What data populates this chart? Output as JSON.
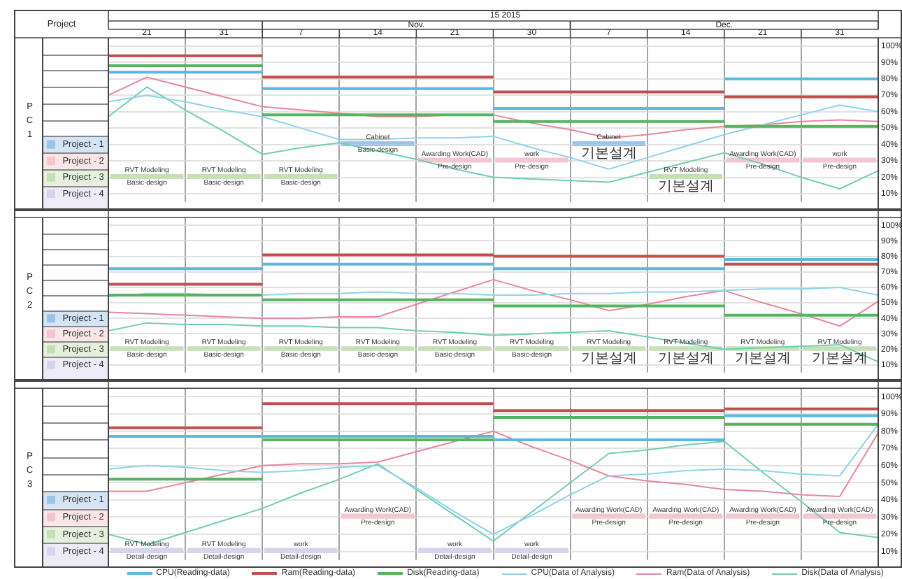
{
  "chart_data": [
    {
      "type": "line",
      "title": "15 2015",
      "legend_title": "Project",
      "ylabel": "PC1",
      "annotations": [
        "Nov.",
        "Dec."
      ],
      "categories": [
        null,
        "21",
        null,
        "31",
        null,
        "7",
        null,
        "14",
        null,
        "21",
        null,
        "30",
        null,
        "7",
        null,
        "14",
        null,
        "21",
        null,
        "31",
        null
      ],
      "series": [
        {
          "type": "step",
          "color": "#5bb8de",
          "values": [
            84,
            84,
            84,
            84,
            74,
            74,
            74,
            74,
            74,
            74,
            62,
            62,
            62,
            62,
            62,
            62,
            80,
            80,
            80,
            80,
            80
          ]
        },
        {
          "type": "step",
          "color": "#c0504d",
          "values": [
            94,
            94,
            94,
            94,
            81,
            81,
            81,
            81,
            81,
            81,
            72,
            72,
            72,
            72,
            72,
            72,
            69,
            69,
            69,
            69,
            69
          ]
        },
        {
          "type": "step",
          "color": "#55b45e",
          "values": [
            88,
            88,
            88,
            88,
            58,
            58,
            58,
            58,
            58,
            58,
            54,
            54,
            54,
            54,
            54,
            54,
            51,
            51,
            51,
            51,
            51
          ]
        },
        {
          "color": "#8fd3ea",
          "values": [
            66,
            70,
            66,
            61,
            57,
            50,
            43,
            43,
            44,
            44,
            45,
            38,
            32,
            25,
            32,
            39,
            46,
            52,
            58,
            64,
            60
          ]
        },
        {
          "color": "#e8879a",
          "values": [
            70,
            81,
            75,
            69,
            63,
            61,
            59,
            57,
            57,
            58,
            58,
            53,
            49,
            44,
            46,
            49,
            51,
            52,
            54,
            55,
            54
          ]
        },
        {
          "color": "#73cdb5",
          "values": [
            57,
            75,
            61,
            48,
            34,
            38,
            41,
            36,
            31,
            25,
            20,
            19,
            18,
            17,
            23,
            29,
            35,
            28,
            20,
            13,
            24
          ]
        },
        {
          "name": "Project - 1",
          "type": "bar",
          "color": "#9dc3e6",
          "values": [
            null,
            null,
            null,
            null,
            null,
            null,
            null,
            2,
            null,
            null,
            null,
            null,
            null,
            2,
            null,
            null,
            null,
            null,
            null,
            null,
            null
          ],
          "base": [
            null,
            null,
            null,
            null,
            null,
            null,
            null,
            40,
            null,
            null,
            null,
            null,
            null,
            40,
            null,
            null,
            null,
            null,
            null,
            null,
            null
          ],
          "value_labels": [
            null,
            null,
            null,
            null,
            null,
            null,
            null,
            "Cabinet",
            null,
            null,
            null,
            null,
            null,
            "Cabinet",
            null,
            null,
            null,
            null,
            null,
            null,
            null
          ]
        },
        {
          "type": "bar",
          "color": "#9dc3e6",
          "values": [
            null,
            null,
            null,
            null,
            null,
            null,
            null,
            -1,
            null,
            null,
            null,
            null,
            null,
            -1,
            null,
            null,
            null,
            null,
            null,
            null,
            null
          ],
          "base": [
            null,
            null,
            null,
            null,
            null,
            null,
            null,
            40,
            null,
            null,
            null,
            null,
            null,
            40,
            null,
            null,
            null,
            null,
            null,
            null,
            null
          ],
          "value_labels": [
            null,
            null,
            null,
            null,
            null,
            null,
            null,
            "Basic-design",
            null,
            null,
            null,
            null,
            null,
            "기본설계",
            null,
            null,
            null,
            null,
            null,
            null,
            null
          ]
        },
        {
          "name": "Project - 2",
          "type": "bar",
          "color": "#f4c7cf",
          "values": [
            null,
            null,
            null,
            null,
            null,
            null,
            null,
            null,
            null,
            2,
            null,
            2,
            null,
            null,
            null,
            null,
            null,
            2,
            null,
            2,
            null
          ],
          "base": [
            null,
            null,
            null,
            null,
            null,
            null,
            null,
            null,
            null,
            30,
            null,
            30,
            null,
            null,
            null,
            null,
            null,
            30,
            null,
            30,
            null
          ],
          "value_labels": [
            null,
            null,
            null,
            null,
            null,
            null,
            null,
            null,
            null,
            "Awarding Work(CAD)",
            null,
            "work",
            null,
            null,
            null,
            null,
            null,
            "Awarding Work(CAD)",
            null,
            "work",
            null
          ]
        },
        {
          "type": "bar",
          "color": "#f4c7cf",
          "values": [
            null,
            null,
            null,
            null,
            null,
            null,
            null,
            null,
            null,
            -1,
            null,
            -1,
            null,
            null,
            null,
            null,
            null,
            -1,
            null,
            -1,
            null
          ],
          "base": [
            null,
            null,
            null,
            null,
            null,
            null,
            null,
            null,
            null,
            30,
            null,
            30,
            null,
            null,
            null,
            null,
            null,
            30,
            null,
            30,
            null
          ],
          "value_labels": [
            null,
            null,
            null,
            null,
            null,
            null,
            null,
            null,
            null,
            "Pre-design",
            null,
            "Pre-design",
            null,
            null,
            null,
            null,
            null,
            "Pre-design",
            null,
            "Pre-design",
            null
          ]
        },
        {
          "name": "Project - 3",
          "type": "bar",
          "color": "#c5e0b4",
          "values": [
            null,
            2,
            null,
            2,
            null,
            2,
            null,
            null,
            null,
            null,
            null,
            null,
            null,
            null,
            null,
            2,
            null,
            null,
            null,
            null,
            null
          ],
          "base": [
            null,
            20,
            null,
            20,
            null,
            20,
            null,
            null,
            null,
            null,
            null,
            null,
            null,
            null,
            null,
            20,
            null,
            null,
            null,
            null,
            null
          ],
          "value_labels": [
            null,
            "RVT Modeling",
            null,
            "RVT Modeling",
            null,
            "RVT Modeling",
            null,
            null,
            null,
            null,
            null,
            null,
            null,
            null,
            null,
            "RVT Modeling",
            null,
            null,
            null,
            null,
            null
          ]
        },
        {
          "type": "bar",
          "color": "#c5e0b4",
          "values": [
            null,
            -1,
            null,
            -1,
            null,
            -1,
            null,
            null,
            null,
            null,
            null,
            null,
            null,
            null,
            null,
            -1,
            null,
            null,
            null,
            null,
            null
          ],
          "base": [
            null,
            20,
            null,
            20,
            null,
            20,
            null,
            null,
            null,
            null,
            null,
            null,
            null,
            null,
            null,
            20,
            null,
            null,
            null,
            null,
            null
          ],
          "value_labels": [
            null,
            "Basic-design",
            null,
            "Basic-design",
            null,
            "Basic-design",
            null,
            null,
            null,
            null,
            null,
            null,
            null,
            null,
            null,
            "기본설계",
            null,
            null,
            null,
            null,
            null
          ]
        },
        {
          "name": "Project - 4",
          "type": "bar",
          "color": "#d6d4ec",
          "values": [
            null,
            null,
            null,
            null,
            null,
            null,
            null,
            null,
            null,
            null,
            null,
            null,
            null,
            null,
            null,
            null,
            null,
            null,
            null,
            null,
            null
          ]
        }
      ],
      "ylim": [
        5,
        105
      ],
      "yticks": [
        {
          "value": 10,
          "label": "10%"
        },
        {
          "value": 20,
          "label": "20%"
        },
        {
          "value": 30,
          "label": "30%"
        },
        {
          "value": 40,
          "label": "40%"
        },
        {
          "value": 50,
          "label": "50%"
        },
        {
          "value": 60,
          "label": "60%"
        },
        {
          "value": 70,
          "label": "70%"
        },
        {
          "value": 80,
          "label": "80%"
        },
        {
          "value": 90,
          "label": "90%"
        },
        {
          "value": 100,
          "label": "100%"
        }
      ],
      "grid": true,
      "legend": "left"
    },
    {
      "type": "line",
      "ylabel": "PC2",
      "categories": [
        null,
        "21",
        null,
        "31",
        null,
        "7",
        null,
        "14",
        null,
        "21",
        null,
        "30",
        null,
        "7",
        null,
        "14",
        null,
        "21",
        null,
        "31",
        null
      ],
      "series": [
        {
          "type": "step",
          "color": "#5bb8de",
          "values": [
            72,
            72,
            72,
            72,
            75,
            75,
            75,
            75,
            75,
            75,
            72,
            72,
            72,
            72,
            72,
            72,
            78,
            78,
            78,
            78,
            78
          ]
        },
        {
          "type": "step",
          "color": "#c0504d",
          "values": [
            62,
            62,
            62,
            62,
            81,
            81,
            81,
            81,
            81,
            81,
            80,
            80,
            80,
            80,
            80,
            80,
            75,
            75,
            75,
            75,
            75
          ]
        },
        {
          "type": "step",
          "color": "#55b45e",
          "values": [
            55,
            55,
            55,
            55,
            52,
            52,
            52,
            52,
            52,
            52,
            48,
            48,
            48,
            48,
            48,
            48,
            42,
            42,
            42,
            42,
            42
          ]
        },
        {
          "color": "#8fd3ea",
          "values": [
            54,
            56,
            56,
            55,
            55,
            56,
            56,
            57,
            56,
            56,
            55,
            55,
            56,
            56,
            57,
            57,
            58,
            59,
            59,
            60,
            55
          ]
        },
        {
          "color": "#e8879a",
          "values": [
            44,
            43,
            42,
            41,
            40,
            40,
            41,
            41,
            49,
            57,
            65,
            58,
            52,
            45,
            49,
            54,
            58,
            50,
            43,
            35,
            51
          ]
        },
        {
          "color": "#73cdb5",
          "values": [
            32,
            37,
            36,
            36,
            35,
            35,
            34,
            34,
            32,
            31,
            29,
            30,
            31,
            32,
            28,
            24,
            20,
            21,
            22,
            23,
            12
          ]
        },
        {
          "name": "Project - 1",
          "type": "bar",
          "color": "#9dc3e6",
          "values": [
            null,
            null,
            null,
            null,
            null,
            null,
            null,
            null,
            null,
            null,
            null,
            null,
            null,
            null,
            null,
            null,
            null,
            null,
            null,
            null,
            null
          ]
        },
        {
          "name": "Project - 2",
          "type": "bar",
          "color": "#f4c7cf",
          "values": [
            null,
            null,
            null,
            null,
            null,
            null,
            null,
            null,
            null,
            null,
            null,
            null,
            null,
            null,
            null,
            null,
            null,
            null,
            null,
            null,
            null
          ]
        },
        {
          "name": "Project - 3",
          "type": "bar",
          "color": "#c5e0b4",
          "values": [
            null,
            2,
            null,
            2,
            null,
            2,
            null,
            2,
            null,
            2,
            null,
            2,
            null,
            2,
            null,
            2,
            null,
            2,
            null,
            2,
            null
          ],
          "base": [
            null,
            20,
            null,
            20,
            null,
            20,
            null,
            20,
            null,
            20,
            null,
            20,
            null,
            20,
            null,
            20,
            null,
            20,
            null,
            20,
            null
          ],
          "value_labels": [
            null,
            "RVT Modeling",
            null,
            "RVT Modeling",
            null,
            "RVT Modeling",
            null,
            "RVT Modeling",
            null,
            "RVT Modeling",
            null,
            "RVT Modeling",
            null,
            "RVT Modeling",
            null,
            "RVT Modeling",
            null,
            "RVT Modeling",
            null,
            "RVT Modeling",
            null
          ]
        },
        {
          "type": "bar",
          "color": "#c5e0b4",
          "values": [
            null,
            -1,
            null,
            -1,
            null,
            -1,
            null,
            -1,
            null,
            -1,
            null,
            -1,
            null,
            -1,
            null,
            -1,
            null,
            -1,
            null,
            -1,
            null
          ],
          "base": [
            null,
            20,
            null,
            20,
            null,
            20,
            null,
            20,
            null,
            20,
            null,
            20,
            null,
            20,
            null,
            20,
            null,
            20,
            null,
            20,
            null
          ],
          "value_labels": [
            null,
            "Basic-design",
            null,
            "Basic-design",
            null,
            "Basic-design",
            null,
            "Basic-design",
            null,
            "Basic-design",
            null,
            "Basic-design",
            null,
            "기본설계",
            null,
            "기본설계",
            null,
            "기본설계",
            null,
            "기본설계",
            null
          ]
        },
        {
          "name": "Project - 4",
          "type": "bar",
          "color": "#d6d4ec",
          "values": [
            null,
            null,
            null,
            null,
            null,
            null,
            null,
            null,
            null,
            null,
            null,
            null,
            null,
            null,
            null,
            null,
            null,
            null,
            null,
            null,
            null
          ]
        }
      ],
      "ylim": [
        5,
        105
      ],
      "yticks": [
        {
          "value": 10,
          "label": "10%"
        },
        {
          "value": 20,
          "label": "20%"
        },
        {
          "value": 30,
          "label": "30%"
        },
        {
          "value": 40,
          "label": "40%"
        },
        {
          "value": 50,
          "label": "50%"
        },
        {
          "value": 60,
          "label": "60%"
        },
        {
          "value": 70,
          "label": "70%"
        },
        {
          "value": 80,
          "label": "80%"
        },
        {
          "value": 90,
          "label": "90%"
        },
        {
          "value": 100,
          "label": "100%"
        }
      ],
      "grid": true,
      "tick_labels": "y",
      "legend": "left"
    },
    {
      "type": "line",
      "ylabel": "PC3",
      "categories": [
        null,
        "21",
        null,
        "31",
        null,
        "7",
        null,
        "14",
        null,
        "21",
        null,
        "30",
        null,
        "7",
        null,
        "14",
        null,
        "21",
        null,
        "31",
        null
      ],
      "series": [
        {
          "name": "CPU(Reading-data)",
          "type": "step",
          "color": "#5bb8de",
          "values": [
            77,
            77,
            77,
            77,
            77,
            77,
            77,
            77,
            77,
            77,
            75,
            75,
            75,
            75,
            75,
            75,
            89,
            89,
            89,
            89,
            89
          ]
        },
        {
          "name": "Ram(Reading-data)",
          "type": "step",
          "color": "#c0504d",
          "values": [
            82,
            82,
            82,
            82,
            96,
            96,
            96,
            96,
            96,
            96,
            92,
            92,
            92,
            92,
            92,
            92,
            93,
            93,
            93,
            93,
            93
          ]
        },
        {
          "name": "Disk(Reading-data)",
          "type": "step",
          "color": "#55b45e",
          "values": [
            52,
            52,
            52,
            52,
            75,
            75,
            75,
            75,
            75,
            75,
            88,
            88,
            88,
            88,
            88,
            88,
            84,
            84,
            84,
            84,
            84
          ]
        },
        {
          "name": "CPU(Data of Analysis)",
          "color": "#8fd3ea",
          "values": [
            58,
            60,
            59,
            57,
            56,
            57,
            59,
            60,
            47,
            33,
            20,
            31,
            43,
            54,
            55,
            57,
            58,
            57,
            55,
            54,
            84
          ]
        },
        {
          "name": "Ram(Data of Analysis)",
          "color": "#e8879a",
          "values": [
            45,
            45,
            50,
            55,
            60,
            61,
            61,
            62,
            68,
            74,
            80,
            71,
            63,
            54,
            51,
            49,
            46,
            45,
            43,
            42,
            79
          ]
        },
        {
          "name": "Disk(Data of Analysis)",
          "color": "#73cdb5",
          "values": [
            20,
            14,
            21,
            28,
            35,
            44,
            52,
            61,
            46,
            31,
            16,
            33,
            50,
            67,
            69,
            72,
            74,
            56,
            39,
            21,
            18
          ]
        },
        {
          "name": "Project - 1",
          "type": "bar",
          "color": "#9dc3e6",
          "values": [
            null,
            null,
            null,
            null,
            null,
            null,
            null,
            null,
            null,
            null,
            null,
            null,
            null,
            null,
            null,
            null,
            null,
            null,
            null,
            null,
            null
          ]
        },
        {
          "name": "Project - 2",
          "type": "bar",
          "color": "#f4c7cf",
          "values": [
            null,
            null,
            null,
            null,
            null,
            null,
            null,
            2,
            null,
            null,
            null,
            null,
            null,
            2,
            null,
            2,
            null,
            2,
            null,
            2,
            null
          ],
          "base": [
            null,
            null,
            null,
            null,
            null,
            null,
            null,
            30,
            null,
            null,
            null,
            null,
            null,
            30,
            null,
            30,
            null,
            30,
            null,
            30,
            null
          ],
          "value_labels": [
            null,
            null,
            null,
            null,
            null,
            null,
            null,
            "Awarding Work(CAD)",
            null,
            null,
            null,
            null,
            null,
            "Awarding Work(CAD)",
            null,
            "Awarding Work(CAD)",
            null,
            "Awarding Work(CAD)",
            null,
            "Awarding Work(CAD)",
            null
          ]
        },
        {
          "type": "bar",
          "color": "#f4c7cf",
          "values": [
            null,
            null,
            null,
            null,
            null,
            null,
            null,
            -1,
            null,
            null,
            null,
            null,
            null,
            -1,
            null,
            -1,
            null,
            -1,
            null,
            -1,
            null
          ],
          "base": [
            null,
            null,
            null,
            null,
            null,
            null,
            null,
            30,
            null,
            null,
            null,
            null,
            null,
            30,
            null,
            30,
            null,
            30,
            null,
            30,
            null
          ],
          "value_labels": [
            null,
            null,
            null,
            null,
            null,
            null,
            null,
            "Pre-design",
            null,
            null,
            null,
            null,
            null,
            "Pre-design",
            null,
            "Pre-design",
            null,
            "Pre-design",
            null,
            "Pre-design",
            null
          ]
        },
        {
          "name": "Project - 3",
          "type": "bar",
          "color": "#c5e0b4",
          "values": [
            null,
            null,
            null,
            null,
            null,
            null,
            null,
            null,
            null,
            null,
            null,
            null,
            null,
            null,
            null,
            null,
            null,
            null,
            null,
            null,
            null
          ]
        },
        {
          "name": "Project - 4",
          "type": "bar",
          "color": "#d6d4ec",
          "values": [
            null,
            2,
            null,
            2,
            null,
            2,
            null,
            null,
            null,
            2,
            null,
            2,
            null,
            null,
            null,
            null,
            null,
            null,
            null,
            null,
            null
          ],
          "base": [
            null,
            10,
            null,
            10,
            null,
            10,
            null,
            null,
            null,
            10,
            null,
            10,
            null,
            null,
            null,
            null,
            null,
            null,
            null,
            null,
            null
          ],
          "value_labels": [
            null,
            "RVT Modeling",
            null,
            "RVT Modeling",
            null,
            "work",
            null,
            null,
            null,
            "work",
            null,
            "work",
            null,
            null,
            null,
            null,
            null,
            null,
            null,
            null,
            null
          ]
        },
        {
          "type": "bar",
          "color": "#d6d4ec",
          "values": [
            null,
            -1,
            null,
            -1,
            null,
            -1,
            null,
            null,
            null,
            -1,
            null,
            -1,
            null,
            null,
            null,
            null,
            null,
            null,
            null,
            null,
            null
          ],
          "base": [
            null,
            10,
            null,
            10,
            null,
            10,
            null,
            null,
            null,
            10,
            null,
            10,
            null,
            null,
            null,
            null,
            null,
            null,
            null,
            null,
            null
          ],
          "value_labels": [
            null,
            "Detail-design",
            null,
            "Detail-design",
            null,
            "Detail-design",
            null,
            null,
            null,
            "Detail-design",
            null,
            "Detail-design",
            null,
            null,
            null,
            null,
            null,
            null,
            null,
            null,
            null
          ]
        }
      ],
      "ylim": [
        5,
        105
      ],
      "yticks": [
        {
          "value": 10,
          "label": "10%"
        },
        {
          "value": 20,
          "label": "20%"
        },
        {
          "value": 30,
          "label": "30%"
        },
        {
          "value": 40,
          "label": "40%"
        },
        {
          "value": 50,
          "label": "50%"
        },
        {
          "value": 60,
          "label": "60%"
        },
        {
          "value": 70,
          "label": "70%"
        },
        {
          "value": 80,
          "label": "80%"
        },
        {
          "value": 90,
          "label": "90%"
        },
        {
          "value": 100,
          "label": "100%"
        }
      ],
      "grid": true,
      "tick_labels": "y",
      "legend": "bottom"
    }
  ]
}
